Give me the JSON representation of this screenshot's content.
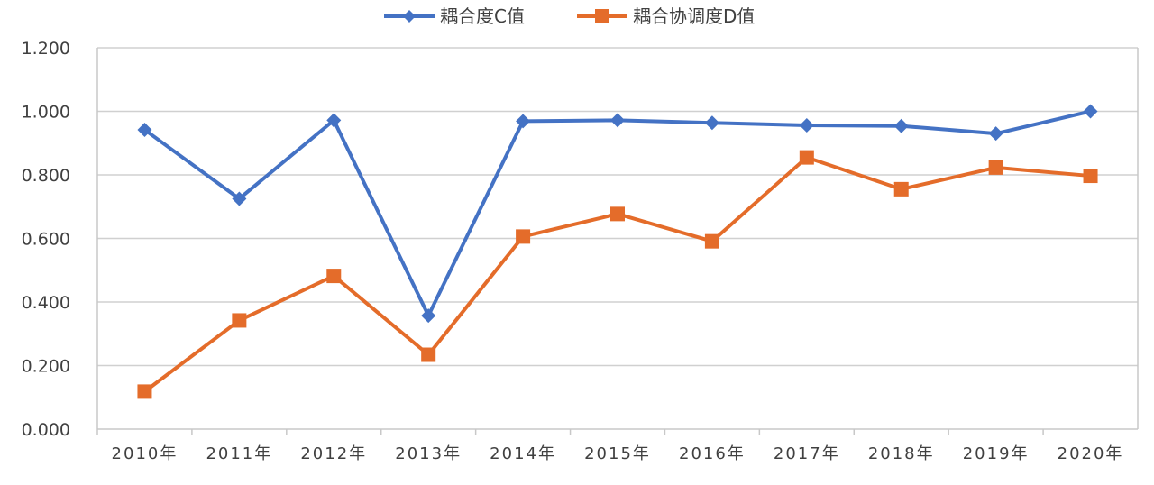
{
  "chart_data": {
    "type": "line",
    "title": "",
    "xlabel": "",
    "ylabel": "",
    "categories": [
      "2010年",
      "2011年",
      "2012年",
      "2013年",
      "2014年",
      "2015年",
      "2016年",
      "2017年",
      "2018年",
      "2019年",
      "2020年"
    ],
    "ylim": [
      0,
      1.2
    ],
    "y_ticks": [
      "0.000",
      "0.200",
      "0.400",
      "0.600",
      "0.800",
      "1.000",
      "1.200"
    ],
    "grid": true,
    "legend_position": "top",
    "series": [
      {
        "name": "耦合度C值",
        "color": "#4472C4",
        "marker": "diamond",
        "values": [
          0.942,
          0.725,
          0.972,
          0.357,
          0.969,
          0.972,
          0.964,
          0.956,
          0.954,
          0.93,
          1.0
        ]
      },
      {
        "name": "耦合协调度D值",
        "color": "#E46C2A",
        "marker": "square",
        "values": [
          0.118,
          0.342,
          0.482,
          0.234,
          0.606,
          0.677,
          0.591,
          0.855,
          0.755,
          0.823,
          0.797
        ]
      }
    ]
  }
}
